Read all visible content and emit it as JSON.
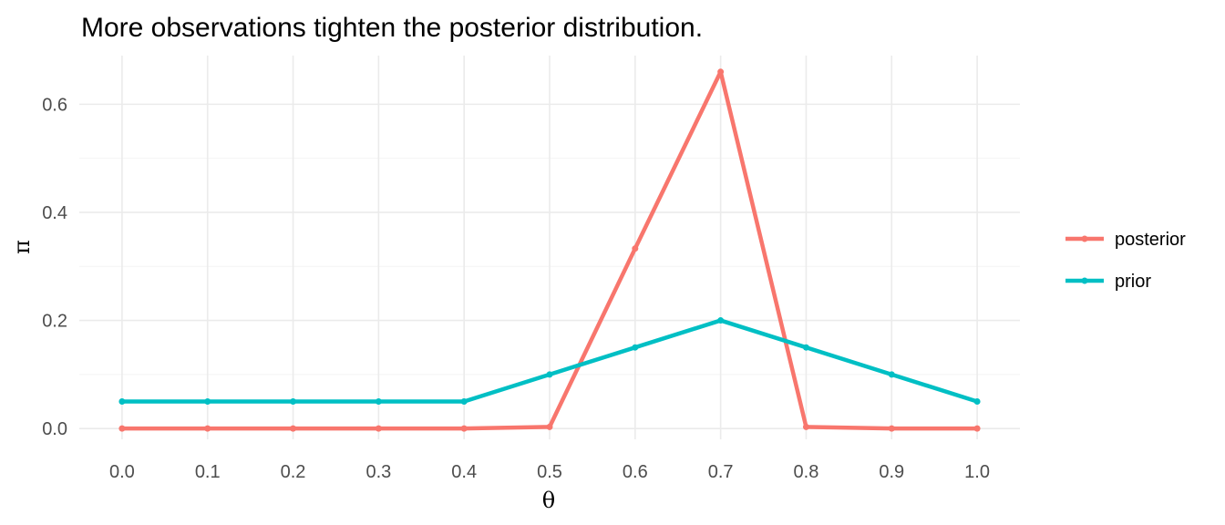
{
  "chart_data": {
    "type": "line",
    "title": "More observations tighten the posterior distribution.",
    "xlabel": "θ",
    "ylabel": "π",
    "x": [
      0.0,
      0.1,
      0.2,
      0.3,
      0.4,
      0.5,
      0.6,
      0.7,
      0.8,
      0.9,
      1.0
    ],
    "x_tick_labels": [
      "0.0",
      "0.1",
      "0.2",
      "0.3",
      "0.4",
      "0.5",
      "0.6",
      "0.7",
      "0.8",
      "0.9",
      "1.0"
    ],
    "y_ticks": [
      0.0,
      0.2,
      0.4,
      0.6
    ],
    "y_tick_labels": [
      "0.0",
      "0.2",
      "0.4",
      "0.6"
    ],
    "xlim": [
      -0.05,
      1.05
    ],
    "ylim": [
      -0.02,
      0.69
    ],
    "grid": true,
    "legend_position": "right",
    "series": [
      {
        "name": "posterior",
        "color": "#F8766D",
        "values": [
          0.0,
          0.0,
          0.0,
          0.0,
          0.0,
          0.003,
          0.333,
          0.66,
          0.003,
          0.0,
          0.0
        ]
      },
      {
        "name": "prior",
        "color": "#00BFC4",
        "values": [
          0.05,
          0.05,
          0.05,
          0.05,
          0.05,
          0.1,
          0.15,
          0.2,
          0.15,
          0.1,
          0.05
        ]
      }
    ]
  }
}
